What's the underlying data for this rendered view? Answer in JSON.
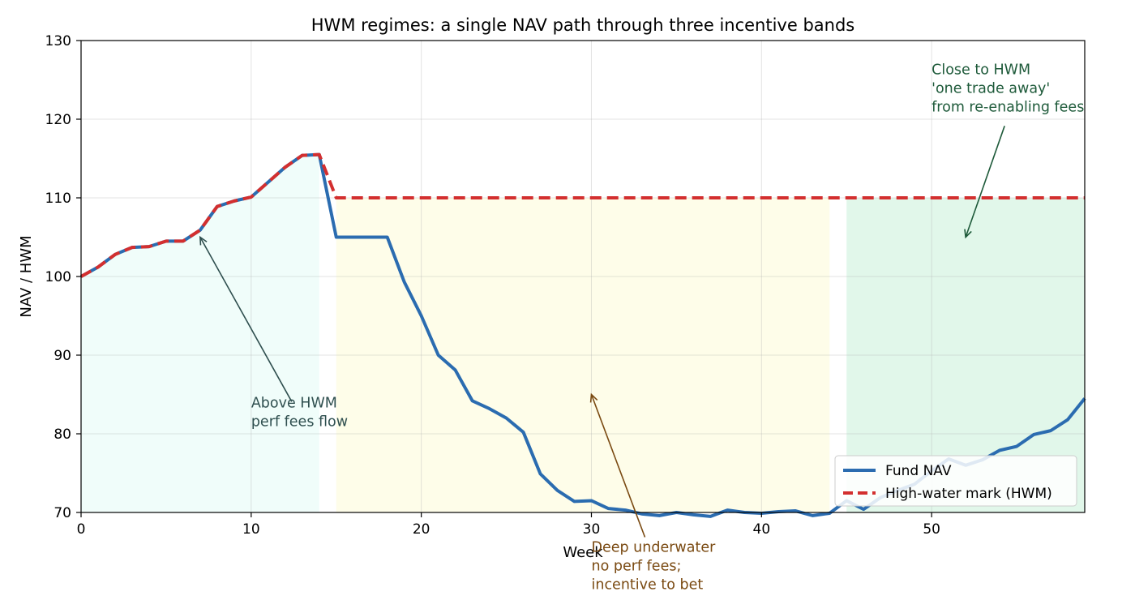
{
  "chart_data": {
    "type": "line",
    "title": "HWM regimes: a single NAV path through three incentive bands",
    "xlabel": "Week",
    "ylabel": "NAV / HWM",
    "xlim": [
      0,
      59
    ],
    "ylim": [
      70,
      130
    ],
    "x_ticks": [
      0,
      10,
      20,
      30,
      40,
      50
    ],
    "y_ticks": [
      70,
      80,
      90,
      100,
      110,
      120,
      130
    ],
    "grid": true,
    "legend_position": "lower-right",
    "x": [
      0,
      1,
      2,
      3,
      4,
      5,
      6,
      7,
      8,
      9,
      10,
      11,
      12,
      13,
      14,
      15,
      16,
      17,
      18,
      19,
      20,
      21,
      22,
      23,
      24,
      25,
      26,
      27,
      28,
      29,
      30,
      31,
      32,
      33,
      34,
      35,
      36,
      37,
      38,
      39,
      40,
      41,
      42,
      43,
      44,
      45,
      46,
      47,
      48,
      49,
      50,
      51,
      52,
      53,
      54,
      55,
      56,
      57,
      58,
      59
    ],
    "series": [
      {
        "name": "Fund NAV",
        "color": "#2b6cb0",
        "style": "solid",
        "values": [
          100.0,
          101.2,
          102.8,
          103.7,
          103.8,
          104.5,
          104.5,
          105.9,
          108.9,
          109.6,
          110.1,
          112.0,
          113.9,
          115.4,
          115.5,
          105.0,
          105.0,
          105.0,
          105.0,
          99.3,
          95.0,
          90.0,
          88.1,
          84.2,
          83.2,
          82.0,
          80.2,
          74.9,
          72.8,
          71.4,
          71.5,
          70.5,
          70.3,
          69.8,
          69.6,
          70.0,
          69.7,
          69.5,
          70.3,
          70.0,
          69.9,
          70.1,
          70.2,
          69.6,
          69.9,
          71.5,
          70.4,
          71.9,
          72.8,
          73.6,
          75.3,
          76.8,
          76.0,
          76.7,
          77.9,
          78.4,
          79.9,
          80.4,
          81.8,
          84.5
        ]
      },
      {
        "name": "High-water mark (HWM)",
        "color": "#d32f2f",
        "style": "dashed",
        "values": [
          100.0,
          101.2,
          102.8,
          103.7,
          103.8,
          104.5,
          104.5,
          105.9,
          108.9,
          109.6,
          110.1,
          112.0,
          113.9,
          115.4,
          115.5,
          110.0,
          110.0,
          110.0,
          110.0,
          110.0,
          110.0,
          110.0,
          110.0,
          110.0,
          110.0,
          110.0,
          110.0,
          110.0,
          110.0,
          110.0,
          110.0,
          110.0,
          110.0,
          110.0,
          110.0,
          110.0,
          110.0,
          110.0,
          110.0,
          110.0,
          110.0,
          110.0,
          110.0,
          110.0,
          110.0,
          110.0,
          110.0,
          110.0,
          110.0,
          110.0,
          110.0,
          110.0,
          110.0,
          110.0,
          110.0,
          110.0,
          110.0,
          110.0,
          110.0,
          110.0
        ]
      }
    ],
    "bands": [
      {
        "name": "above-hwm",
        "x_range": [
          0,
          14
        ],
        "y_range": [
          70,
          115.5
        ],
        "color": "#e6fbf7",
        "top": "nav"
      },
      {
        "name": "deep-underwater",
        "x_range": [
          15,
          44
        ],
        "y_range": [
          70,
          110
        ],
        "color": "#fdfbd7",
        "top": "flat"
      },
      {
        "name": "close-to-hwm",
        "x_range": [
          45,
          59
        ],
        "y_range": [
          70,
          110
        ],
        "color": "#c9f1d8",
        "top": "flat"
      }
    ],
    "annotations": [
      {
        "name": "above-hwm",
        "lines": [
          "Above HWM",
          "perf fees flow"
        ],
        "text_at": [
          10,
          81
        ],
        "arrow_to": [
          7,
          105
        ],
        "color": "#2f4f4f"
      },
      {
        "name": "deep-underwater",
        "lines": [
          "Deep underwater",
          "no perf fees;",
          "incentive to bet"
        ],
        "text_at": [
          30,
          65
        ],
        "arrow_to": [
          30,
          85
        ],
        "color": "#7a4a12"
      },
      {
        "name": "close-to-hwm",
        "lines": [
          "Close to HWM",
          "'one trade away'",
          "from re-enabling fees"
        ],
        "text_at": [
          50,
          121
        ],
        "arrow_to": [
          52,
          105
        ],
        "color": "#1e5a3a"
      }
    ]
  }
}
